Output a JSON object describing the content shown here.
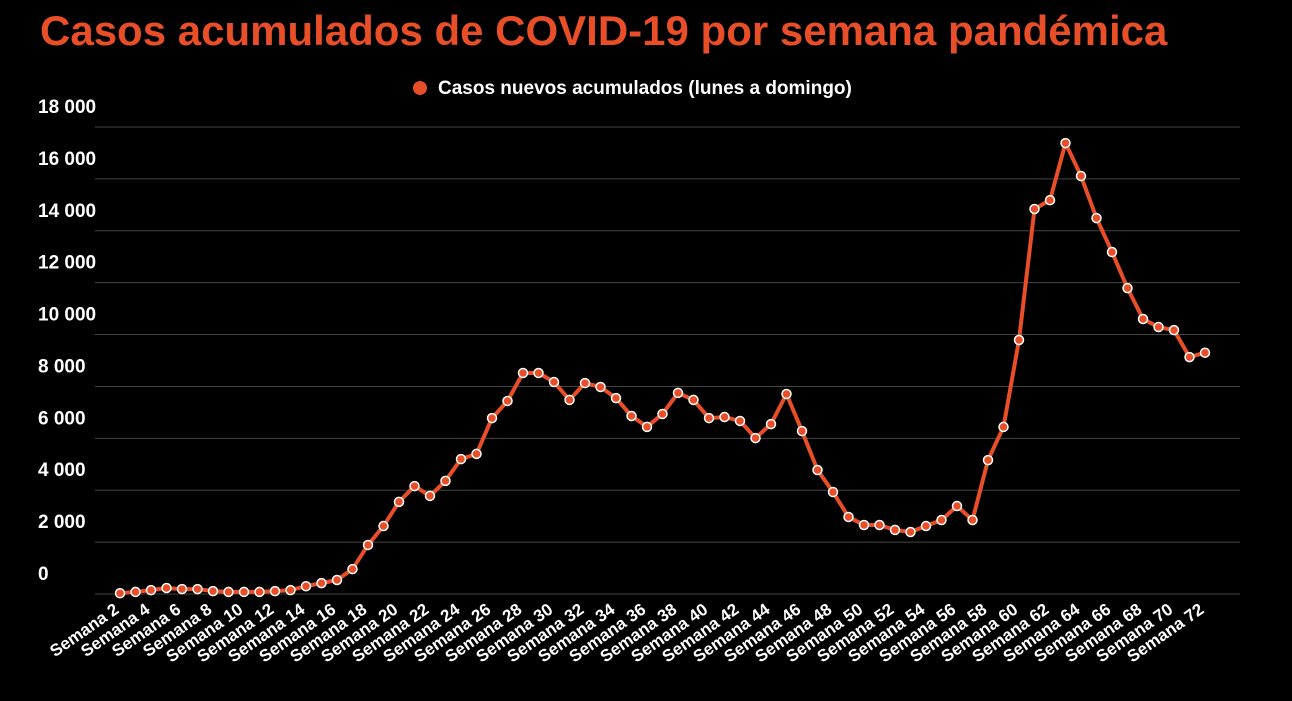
{
  "chart_data": {
    "type": "line",
    "title": "Casos acumulados de COVID-19 por semana pandémica",
    "categories": [
      "Semana 2",
      null,
      "Semana 4",
      null,
      "Semana 6",
      null,
      "Semana 8",
      null,
      "Semana 10",
      null,
      "Semana 12",
      null,
      "Semana 14",
      null,
      "Semana 16",
      null,
      "Semana 18",
      null,
      "Semana 20",
      null,
      "Semana 22",
      null,
      "Semana 24",
      null,
      "Semana 26",
      null,
      "Semana 28",
      null,
      "Semana 30",
      null,
      "Semana 32",
      null,
      "Semana 34",
      null,
      "Semana 36",
      null,
      "Semana 38",
      null,
      "Semana 40",
      null,
      "Semana 42",
      null,
      "Semana 44",
      null,
      "Semana 46",
      null,
      "Semana 48",
      null,
      "Semana 50",
      null,
      "Semana 52",
      null,
      "Semana 54",
      null,
      "Semana 56",
      null,
      "Semana 58",
      null,
      "Semana 60",
      null,
      "Semana 62",
      null,
      "Semana 64",
      null,
      "Semana 66",
      null,
      "Semana 68",
      null,
      "Semana 70",
      null,
      "Semana 72"
    ],
    "series": [
      {
        "name": "Casos nuevos acumulados (lunes a domingo)",
        "color": "#e84e27",
        "values": [
          30,
          80,
          150,
          230,
          190,
          190,
          110,
          80,
          80,
          80,
          110,
          150,
          300,
          420,
          540,
          960,
          1890,
          2620,
          3550,
          4160,
          3780,
          4360,
          5200,
          5400,
          6780,
          7440,
          8520,
          8520,
          8170,
          7480,
          8130,
          7980,
          7550,
          6860,
          6440,
          6940,
          7750,
          7480,
          6780,
          6820,
          6670,
          6010,
          6550,
          7710,
          6280,
          4780,
          3930,
          2970,
          2660,
          2660,
          2470,
          2390,
          2620,
          2850,
          3390,
          2850,
          5160,
          6440,
          9790,
          14840,
          15180,
          17380,
          16110,
          14490,
          13180,
          11790,
          10600,
          10290,
          10170,
          9130,
          9300
        ]
      }
    ],
    "ylim": [
      0,
      18000
    ],
    "yticks": [
      0,
      {
        "value": 2000,
        "label": "2 000"
      },
      {
        "value": 4000,
        "label": "4 000"
      },
      {
        "value": 6000,
        "label": "6 000"
      },
      {
        "value": 8000,
        "label": "8 000"
      },
      {
        "value": 10000,
        "label": "10 000"
      },
      {
        "value": 12000,
        "label": "12 000"
      },
      {
        "value": 14000,
        "label": "14 000"
      },
      {
        "value": 16000,
        "label": "16 000"
      },
      {
        "value": 18000,
        "label": "18 000"
      }
    ],
    "grid": true,
    "legend": "top"
  }
}
